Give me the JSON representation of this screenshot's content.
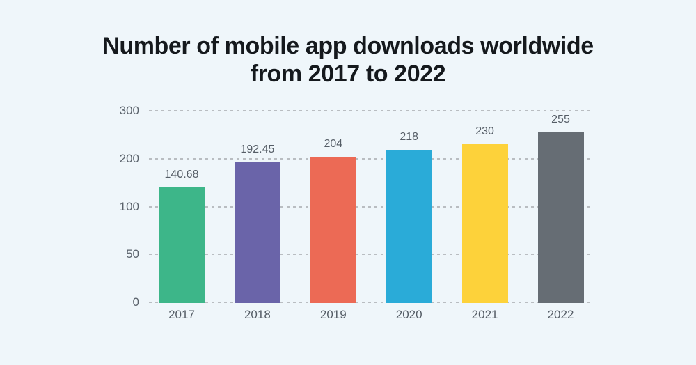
{
  "title": {
    "line1": "Number of mobile app downloads worldwide",
    "line2": "from 2017 to 2022"
  },
  "chart_data": {
    "type": "bar",
    "title": "Number of mobile app downloads worldwide from 2017 to 2022",
    "categories": [
      "2017",
      "2018",
      "2019",
      "2020",
      "2021",
      "2022"
    ],
    "values": [
      140.68,
      192.45,
      204,
      218,
      230,
      255
    ],
    "value_labels": [
      "140.68",
      "192.45",
      "204",
      "218",
      "230",
      "255"
    ],
    "bar_colors": [
      "#3db689",
      "#6a64a9",
      "#ec6a55",
      "#2aabd8",
      "#fdd23a",
      "#666d74"
    ],
    "xlabel": "",
    "ylabel": "",
    "y_ticks": [
      0,
      50,
      100,
      200,
      300
    ],
    "y_tick_labels": [
      "0",
      "50",
      "100",
      "200",
      "300"
    ],
    "ylim_note": "tick gridlines equally spaced (0,50,100,200,300), dashed horizontal grid",
    "legend": "none",
    "data_labels": "above each bar"
  },
  "colors": {
    "background": "#eff6fa",
    "title_text": "#15191d",
    "axis_text": "#5a626b",
    "gridline": "#b9bdc1"
  }
}
